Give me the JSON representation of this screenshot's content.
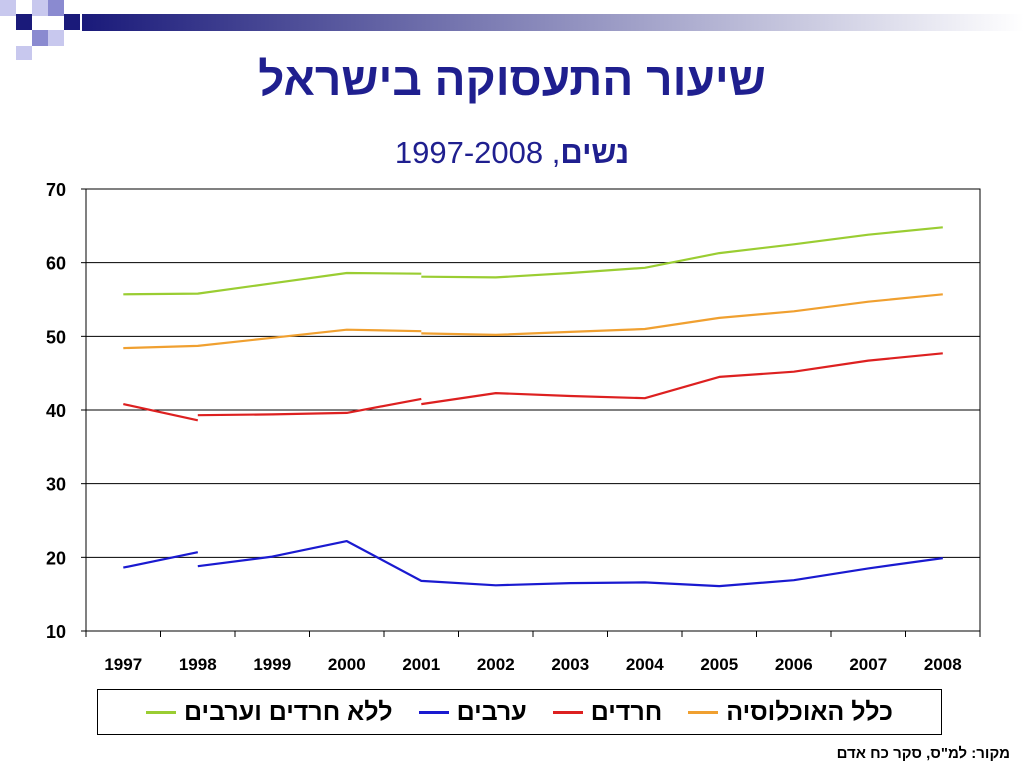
{
  "header": {
    "title": "שיעור התעסוקה בישראל",
    "subtitle_bold": "נשים",
    "subtitle_sep": ",",
    "subtitle_years": "1997-2008"
  },
  "source": "מקור: למ\"ס, סקר כח אדם",
  "colors": {
    "title": "#1f1f8f",
    "total": "#f0a030",
    "haredim": "#dd2020",
    "arabs": "#1a1ad0",
    "excluding": "#9acd32"
  },
  "decoration": {
    "squares_colors": [
      "#1a1a7a",
      "#8a8ad0",
      "#c8c8ee"
    ],
    "banner_gradient": [
      "#1a1a7a",
      "#ffffff"
    ]
  },
  "chart_data": {
    "type": "line",
    "categories": [
      "1997",
      "1998",
      "1999",
      "2000",
      "2001",
      "2002",
      "2003",
      "2004",
      "2005",
      "2006",
      "2007",
      "2008"
    ],
    "ylim": [
      10,
      70
    ],
    "yticks": [
      10,
      20,
      30,
      40,
      50,
      60,
      70
    ],
    "grid": true,
    "legend_position": "bottom",
    "series": [
      {
        "name": "כלל האוכלוסיה",
        "color": "#f0a030",
        "segments": [
          [
            [
              1997,
              48.4
            ],
            [
              1998,
              48.7
            ],
            [
              1999,
              49.8
            ],
            [
              2000,
              50.9
            ],
            [
              2001,
              50.7
            ]
          ],
          [
            [
              2001,
              50.4
            ],
            [
              2002,
              50.2
            ],
            [
              2003,
              50.6
            ],
            [
              2004,
              51.0
            ],
            [
              2005,
              52.5
            ],
            [
              2006,
              53.4
            ],
            [
              2007,
              54.7
            ],
            [
              2008,
              55.7
            ]
          ]
        ]
      },
      {
        "name": "חרדים",
        "color": "#dd2020",
        "segments": [
          [
            [
              1997,
              40.8
            ],
            [
              1998,
              38.6
            ]
          ],
          [
            [
              1998,
              39.3
            ],
            [
              1999,
              39.4
            ],
            [
              2000,
              39.6
            ],
            [
              2001,
              41.5
            ]
          ],
          [
            [
              2001,
              40.8
            ],
            [
              2002,
              42.3
            ],
            [
              2003,
              41.9
            ],
            [
              2004,
              41.6
            ],
            [
              2005,
              44.5
            ],
            [
              2006,
              45.2
            ],
            [
              2007,
              46.7
            ],
            [
              2008,
              47.7
            ]
          ]
        ]
      },
      {
        "name": "ערבים",
        "color": "#1a1ad0",
        "segments": [
          [
            [
              1997,
              18.6
            ],
            [
              1998,
              20.7
            ]
          ],
          [
            [
              1998,
              18.8
            ],
            [
              1999,
              20.1
            ],
            [
              2000,
              22.2
            ],
            [
              2001,
              16.8
            ],
            [
              2002,
              16.2
            ],
            [
              2003,
              16.5
            ],
            [
              2004,
              16.6
            ],
            [
              2005,
              16.1
            ],
            [
              2006,
              16.9
            ],
            [
              2007,
              18.5
            ],
            [
              2008,
              19.9
            ]
          ]
        ]
      },
      {
        "name": "ללא חרדים וערבים",
        "color": "#9acd32",
        "segments": [
          [
            [
              1997,
              55.7
            ],
            [
              1998,
              55.8
            ],
            [
              1999,
              57.2
            ],
            [
              2000,
              58.6
            ],
            [
              2001,
              58.5
            ]
          ],
          [
            [
              2001,
              58.1
            ],
            [
              2002,
              58.0
            ],
            [
              2003,
              58.6
            ],
            [
              2004,
              59.3
            ],
            [
              2005,
              61.3
            ],
            [
              2006,
              62.5
            ],
            [
              2007,
              63.8
            ],
            [
              2008,
              64.8
            ]
          ]
        ]
      }
    ]
  }
}
